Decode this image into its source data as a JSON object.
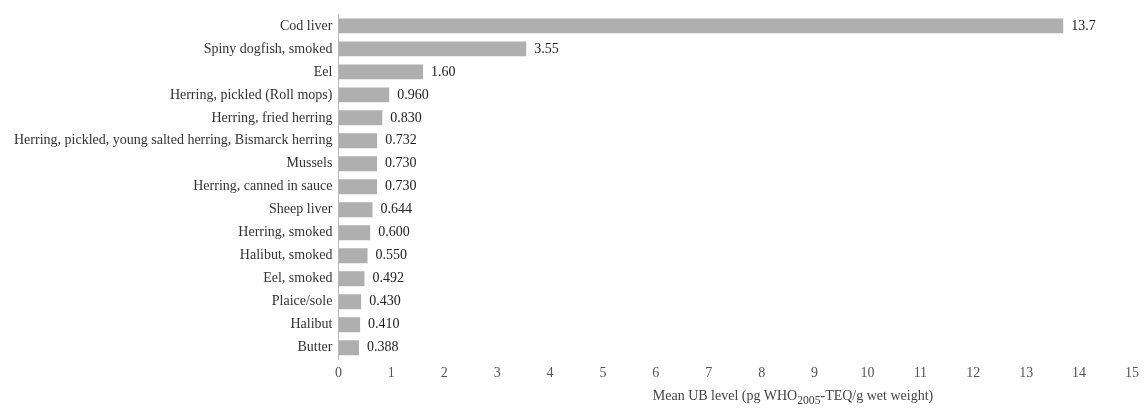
{
  "chart_data": {
    "type": "bar",
    "orientation": "horizontal",
    "categories": [
      "Cod liver",
      "Spiny dogfish, smoked",
      "Eel",
      "Herring, pickled (Roll mops)",
      "Herring, fried herring",
      "Herring, pickled, young salted herring, Bismarck herring",
      "Mussels",
      "Herring, canned in sauce",
      "Sheep liver",
      "Herring, smoked",
      "Halibut, smoked",
      "Eel, smoked",
      "Plaice/sole",
      "Halibut",
      "Butter"
    ],
    "values": [
      13.7,
      3.55,
      1.6,
      0.96,
      0.83,
      0.732,
      0.73,
      0.73,
      0.644,
      0.6,
      0.55,
      0.492,
      0.43,
      0.41,
      0.388
    ],
    "value_labels": [
      "13.7",
      "3.55",
      "1.60",
      "0.960",
      "0.830",
      "0.732",
      "0.730",
      "0.730",
      "0.644",
      "0.600",
      "0.550",
      "0.492",
      "0.430",
      "0.410",
      "0.388"
    ],
    "color": "#afafb0",
    "xlim": [
      0,
      15
    ],
    "xticks": [
      0,
      1,
      2,
      3,
      4,
      5,
      6,
      7,
      8,
      9,
      10,
      11,
      12,
      13,
      14,
      15
    ],
    "xlabel": "Mean UB level (pg WHO$_{2005}$-TEQ/g wet weight)",
    "grid": false,
    "legend": false
  }
}
